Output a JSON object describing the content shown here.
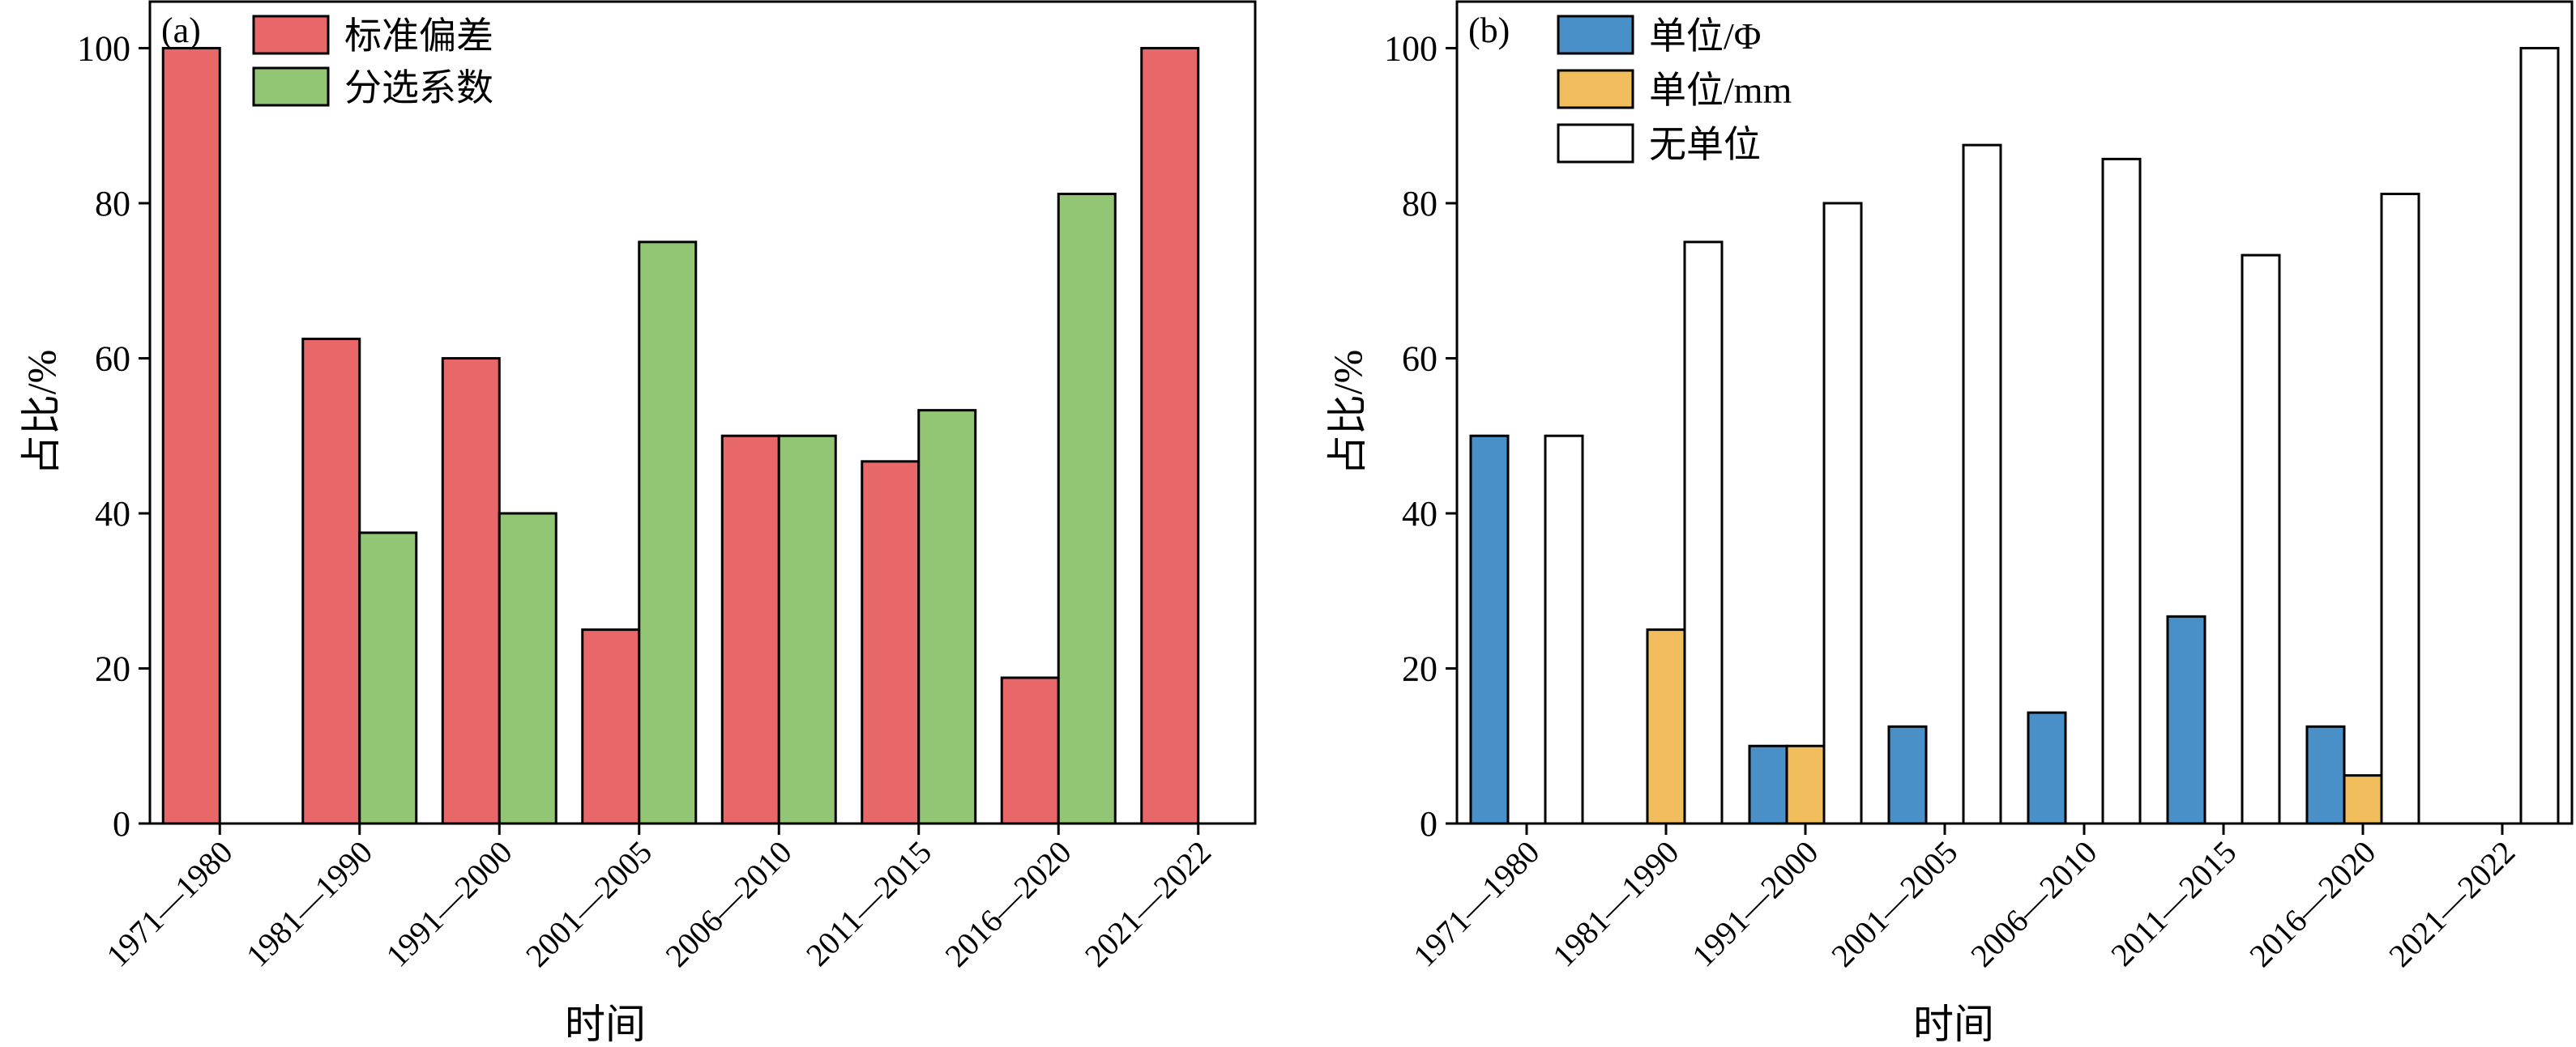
{
  "colors": {
    "std_dev": "#E8686A",
    "sorting": "#92C574",
    "phi": "#4A90C8",
    "mm": "#F2BE5D",
    "none": "#FFFFFF",
    "stroke": "#000000"
  },
  "chart_data": [
    {
      "type": "bar",
      "panel_label": "(a)",
      "xlabel": "时间",
      "ylabel": "占比/%",
      "ylim": [
        0,
        106
      ],
      "yticks": [
        0,
        20,
        40,
        60,
        80,
        100
      ],
      "categories": [
        "1971—1980",
        "1981—1990",
        "1991—2000",
        "2001—2005",
        "2006—2010",
        "2011—2015",
        "2016—2020",
        "2021—2022"
      ],
      "series": [
        {
          "name": "标准偏差",
          "color_key": "std_dev",
          "values": [
            100,
            62.5,
            60,
            25,
            50,
            46.7,
            18.8,
            100
          ]
        },
        {
          "name": "分选系数",
          "color_key": "sorting",
          "values": [
            0,
            37.5,
            40,
            75,
            50,
            53.3,
            81.2,
            0
          ]
        }
      ],
      "legend_position": "top-left"
    },
    {
      "type": "bar",
      "panel_label": "(b)",
      "xlabel": "时间",
      "ylabel": "占比/%",
      "ylim": [
        0,
        106
      ],
      "yticks": [
        0,
        20,
        40,
        60,
        80,
        100
      ],
      "categories": [
        "1971—1980",
        "1981—1990",
        "1991—2000",
        "2001—2005",
        "2006—2010",
        "2011—2015",
        "2016—2020",
        "2021—2022"
      ],
      "series": [
        {
          "name": "单位/Φ",
          "color_key": "phi",
          "values": [
            50,
            0,
            10,
            12.5,
            14.3,
            26.7,
            12.5,
            0
          ]
        },
        {
          "name": "单位/mm",
          "color_key": "mm",
          "values": [
            0,
            25,
            10,
            0,
            0,
            0,
            6.2,
            0
          ]
        },
        {
          "name": "无单位",
          "color_key": "none",
          "values": [
            50,
            75,
            80,
            87.5,
            85.7,
            73.3,
            81.2,
            100
          ]
        }
      ],
      "legend_position": "top-left"
    }
  ]
}
